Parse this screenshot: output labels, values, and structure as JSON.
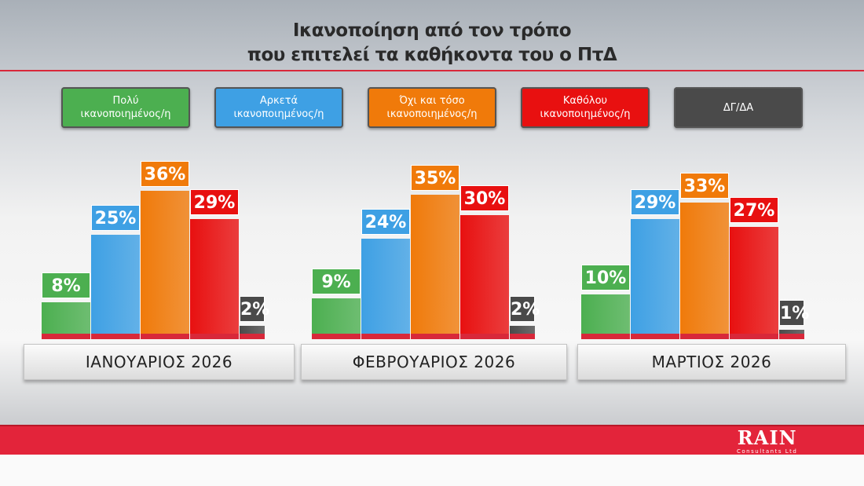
{
  "title": [
    "Ικανοποίηση από τον τρόπο",
    "που επιτελεί τα καθήκοντα του ο ΠτΔ"
  ],
  "logo": {
    "name": "RAIN",
    "sub": "Consultants Ltd"
  },
  "chart_data": {
    "type": "bar",
    "title": "Ικανοποίηση από τον τρόπο που επιτελεί τα καθήκοντα του ο ΠτΔ",
    "categories": [
      "ΙΑΝΟΥΑΡΙΟΣ 2026",
      "ΦΕΒΡΟΥΑΡΙΟΣ 2026",
      "ΜΑΡΤΙΟΣ 2026"
    ],
    "legend_placement": "top",
    "series": [
      {
        "name": "Πολύ ικανοποιημένος/η",
        "name_lines": [
          "Πολύ",
          "ικανοποιημένος/η"
        ],
        "color": "#4caf50",
        "values": [
          8,
          9,
          10
        ]
      },
      {
        "name": "Αρκετά ικανοποιημένος/η",
        "name_lines": [
          "Αρκετά",
          "ικανοποιημένος/η"
        ],
        "color": "#3ea0e4",
        "values": [
          25,
          24,
          29
        ]
      },
      {
        "name": "Όχι και τόσο ικανοποιημένος/η",
        "name_lines": [
          "Όχι και τόσο",
          "ικανοποιημένος/η"
        ],
        "color": "#f07a0a",
        "values": [
          36,
          35,
          33
        ]
      },
      {
        "name": "Καθόλου ικανοποιημένος/η",
        "name_lines": [
          "Καθόλου",
          "ικανοποιημένος/η"
        ],
        "color": "#e81010",
        "values": [
          29,
          30,
          27
        ]
      },
      {
        "name": "ΔΓ/ΔΑ",
        "name_lines": [
          "ΔΓ/ΔΑ"
        ],
        "color": "#4a4a4a",
        "values": [
          2,
          2,
          1
        ]
      }
    ],
    "unit": "%",
    "ylim": [
      0,
      40
    ],
    "grid": false
  }
}
